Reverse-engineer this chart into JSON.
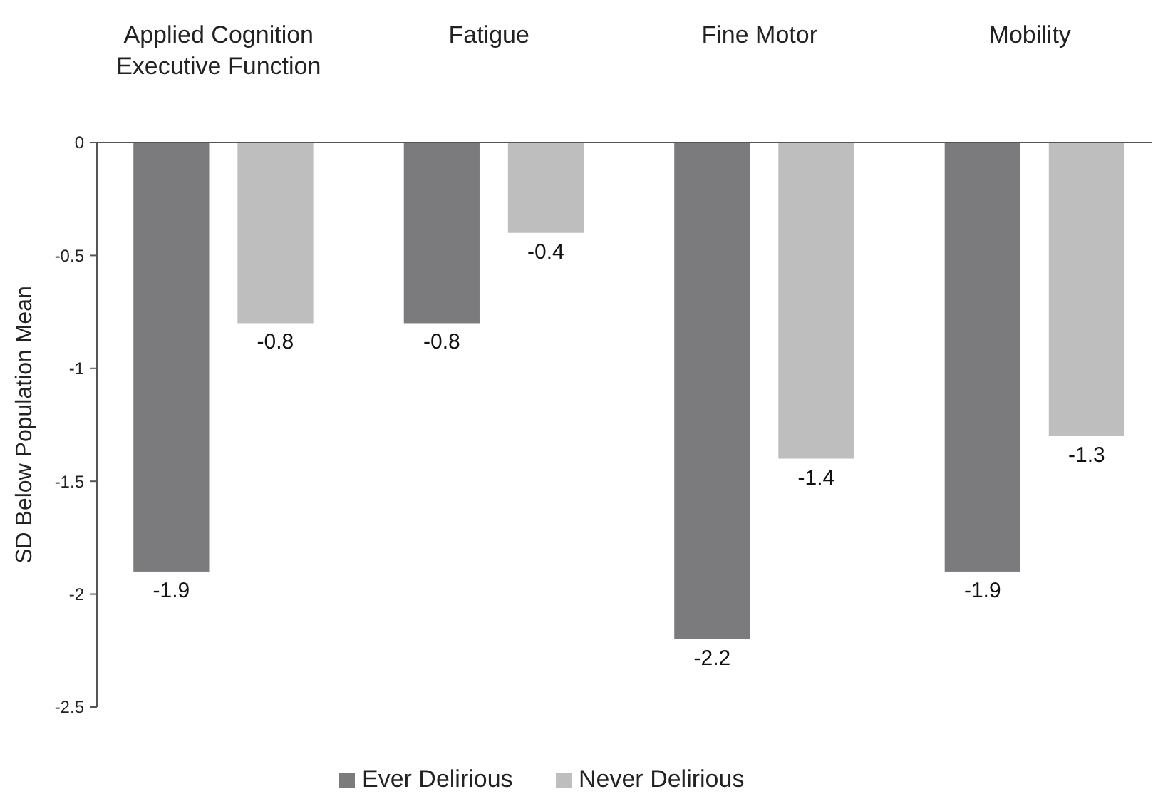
{
  "chart_data": {
    "type": "bar",
    "ylabel": "SD Below Population Mean",
    "categories": [
      "Applied Cognition\nExecutive Function",
      "Fatigue",
      "Fine Motor",
      "Mobility"
    ],
    "series": [
      {
        "name": "Ever Delirious",
        "color": "#7b7b7d",
        "values": [
          -1.9,
          -0.8,
          -2.2,
          -1.9
        ]
      },
      {
        "name": "Never Delirious",
        "color": "#bebebe",
        "values": [
          -0.8,
          -0.4,
          -1.4,
          -1.3
        ]
      }
    ],
    "ylim": [
      -2.5,
      0
    ],
    "yticks": [
      0,
      -0.5,
      -1,
      -1.5,
      -2,
      -2.5
    ],
    "data_labels": true,
    "grid": false,
    "legend": "bottom"
  }
}
